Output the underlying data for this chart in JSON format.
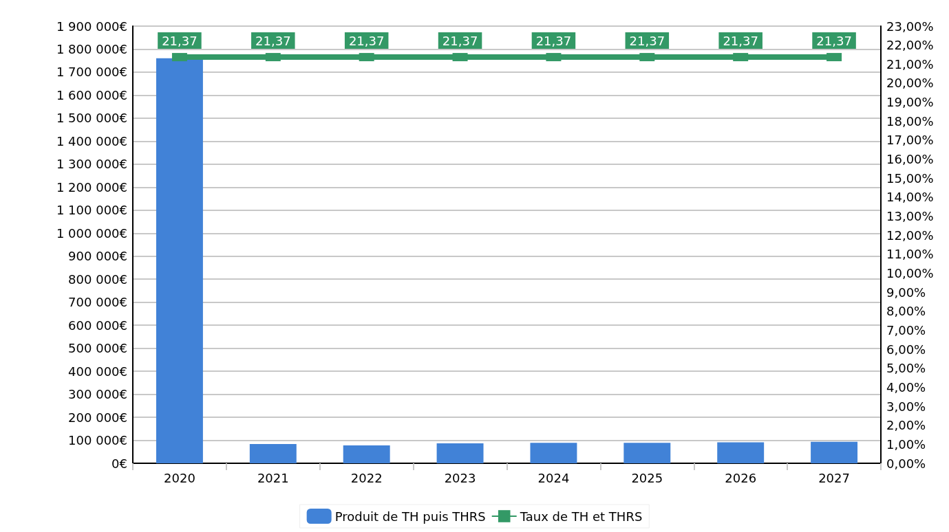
{
  "chart_data": {
    "type": "bar",
    "categories": [
      "2020",
      "2021",
      "2022",
      "2023",
      "2024",
      "2025",
      "2026",
      "2027"
    ],
    "series": [
      {
        "name": "Produit de TH puis THRS",
        "color": "#4182d7",
        "values": [
          1760000,
          84000,
          78000,
          87000,
          89000,
          89000,
          91000,
          93000
        ]
      },
      {
        "name": "Taux de TH et THRS",
        "type": "line",
        "axis": "y2",
        "color": "#339966",
        "marker": "square",
        "values": [
          21.37,
          21.37,
          21.37,
          21.37,
          21.37,
          21.37,
          21.37,
          21.37
        ],
        "value_labels": [
          "21,37",
          "21,37",
          "21,37",
          "21,37",
          "21,37",
          "21,37",
          "21,37",
          "21,37"
        ]
      }
    ],
    "ylim": [
      0,
      1900000
    ],
    "yticks": [
      {
        "value": 0,
        "label": "0€"
      },
      {
        "value": 100000,
        "label": "100 000€"
      },
      {
        "value": 200000,
        "label": "200 000€"
      },
      {
        "value": 300000,
        "label": "300 000€"
      },
      {
        "value": 400000,
        "label": "400 000€"
      },
      {
        "value": 500000,
        "label": "500 000€"
      },
      {
        "value": 600000,
        "label": "600 000€"
      },
      {
        "value": 700000,
        "label": "700 000€"
      },
      {
        "value": 800000,
        "label": "800 000€"
      },
      {
        "value": 900000,
        "label": "900 000€"
      },
      {
        "value": 1000000,
        "label": "1 000 000€"
      },
      {
        "value": 1100000,
        "label": "1 100 000€"
      },
      {
        "value": 1200000,
        "label": "1 200 000€"
      },
      {
        "value": 1300000,
        "label": "1 300 000€"
      },
      {
        "value": 1400000,
        "label": "1 400 000€"
      },
      {
        "value": 1500000,
        "label": "1 500 000€"
      },
      {
        "value": 1600000,
        "label": "1 600 000€"
      },
      {
        "value": 1700000,
        "label": "1 700 000€"
      },
      {
        "value": 1800000,
        "label": "1 800 000€"
      },
      {
        "value": 1900000,
        "label": "1 900 000€"
      }
    ],
    "y2lim": [
      0,
      23
    ],
    "y2ticks": [
      {
        "value": 0,
        "label": "0,00%"
      },
      {
        "value": 1,
        "label": "1,00%"
      },
      {
        "value": 2,
        "label": "2,00%"
      },
      {
        "value": 3,
        "label": "3,00%"
      },
      {
        "value": 4,
        "label": "4,00%"
      },
      {
        "value": 5,
        "label": "5,00%"
      },
      {
        "value": 6,
        "label": "6,00%"
      },
      {
        "value": 7,
        "label": "7,00%"
      },
      {
        "value": 8,
        "label": "8,00%"
      },
      {
        "value": 9,
        "label": "9,00%"
      },
      {
        "value": 10,
        "label": "10,00%"
      },
      {
        "value": 11,
        "label": "11,00%"
      },
      {
        "value": 12,
        "label": "12,00%"
      },
      {
        "value": 13,
        "label": "13,00%"
      },
      {
        "value": 14,
        "label": "14,00%"
      },
      {
        "value": 15,
        "label": "15,00%"
      },
      {
        "value": 16,
        "label": "16,00%"
      },
      {
        "value": 17,
        "label": "17,00%"
      },
      {
        "value": 18,
        "label": "18,00%"
      },
      {
        "value": 19,
        "label": "19,00%"
      },
      {
        "value": 20,
        "label": "20,00%"
      },
      {
        "value": 21,
        "label": "21,00%"
      },
      {
        "value": 22,
        "label": "22,00%"
      },
      {
        "value": 23,
        "label": "23,00%"
      }
    ],
    "grid": "y",
    "legend": "bottom"
  }
}
